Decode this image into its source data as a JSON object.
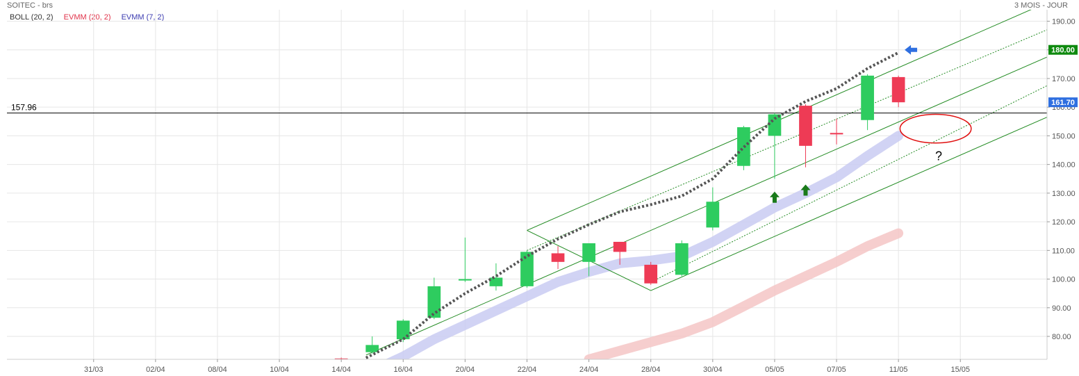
{
  "header": {
    "symbol": "SOITEC - brs",
    "period": "3 MOIS - JOUR"
  },
  "legend": [
    {
      "label": "BOLL (20, 2)",
      "color": "#333333"
    },
    {
      "label": "EVMM (20, 2)",
      "color": "#e0334a"
    },
    {
      "label": "EVMM (7, 2)",
      "color": "#3b3bb0"
    }
  ],
  "colors": {
    "up": "#2ecc5f",
    "down": "#ee3b55",
    "channel": "#228b22",
    "ema7_band": "#c9cbf2",
    "ema20_band": "#f4c6c6",
    "trend_dots": "#555555",
    "annotation_circle": "#e01010",
    "tag_resistance": "#0f8a0f",
    "tag_last": "#2f6fe0"
  },
  "chart_data": {
    "type": "candlestick",
    "title": "SOITEC - brs",
    "xlabel": "",
    "ylabel": "",
    "ylim": [
      72,
      194
    ],
    "y_ticks": [
      "80.00",
      "90.00",
      "100.00",
      "110.00",
      "120.00",
      "130.00",
      "140.00",
      "150.00",
      "160.00",
      "170.00",
      "180.00",
      "190.00"
    ],
    "x_ticks": [
      "31/03",
      "02/04",
      "08/04",
      "10/04",
      "14/04",
      "16/04",
      "20/04",
      "22/04",
      "24/04",
      "28/04",
      "30/04",
      "05/05",
      "07/05",
      "11/05",
      "15/05"
    ],
    "x_tick_positions": [
      5,
      7,
      9,
      11,
      13,
      15,
      17,
      19,
      21,
      23,
      25,
      27,
      29,
      31,
      33
    ],
    "x_range": [
      2.2,
      35.8
    ],
    "horizontal_line": {
      "value": 157.96,
      "label": "157.96"
    },
    "price_tags": [
      {
        "value": 180.0,
        "label": "180.00",
        "kind": "resistance"
      },
      {
        "value": 161.7,
        "label": "161.70",
        "kind": "last"
      }
    ],
    "candles": [
      {
        "x": 13.0,
        "open": 72.3,
        "close": 72.1,
        "high": 72.6,
        "low": 71.8
      },
      {
        "x": 14.0,
        "open": 74.5,
        "close": 77.0,
        "high": 80.0,
        "low": 74.0
      },
      {
        "x": 15.0,
        "open": 79.0,
        "close": 85.5,
        "high": 86.0,
        "low": 78.0
      },
      {
        "x": 16.0,
        "open": 86.5,
        "close": 97.5,
        "high": 100.5,
        "low": 86.0
      },
      {
        "x": 17.0,
        "open": 99.5,
        "close": 100.0,
        "high": 114.5,
        "low": 99.0
      },
      {
        "x": 18.0,
        "open": 97.5,
        "close": 100.5,
        "high": 105.5,
        "low": 96.0
      },
      {
        "x": 19.0,
        "open": 97.5,
        "close": 109.5,
        "high": 110.0,
        "low": 97.0
      },
      {
        "x": 20.0,
        "open": 109.0,
        "close": 106.0,
        "high": 111.5,
        "low": 103.5
      },
      {
        "x": 21.0,
        "open": 106.0,
        "close": 112.5,
        "high": 112.5,
        "low": 101.0
      },
      {
        "x": 22.0,
        "open": 113.0,
        "close": 109.5,
        "high": 113.0,
        "low": 105.0
      },
      {
        "x": 23.0,
        "open": 105.0,
        "close": 98.5,
        "high": 106.0,
        "low": 98.0
      },
      {
        "x": 24.0,
        "open": 101.5,
        "close": 112.5,
        "high": 113.5,
        "low": 101.0
      },
      {
        "x": 25.0,
        "open": 118.0,
        "close": 127.0,
        "high": 132.0,
        "low": 117.0
      },
      {
        "x": 26.0,
        "open": 139.5,
        "close": 153.0,
        "high": 153.5,
        "low": 138.0
      },
      {
        "x": 27.0,
        "open": 150.0,
        "close": 157.5,
        "high": 158.0,
        "low": 135.0
      },
      {
        "x": 28.0,
        "open": 160.5,
        "close": 146.5,
        "high": 161.0,
        "low": 139.0
      },
      {
        "x": 29.0,
        "open": 151.0,
        "close": 150.5,
        "high": 156.0,
        "low": 147.0
      },
      {
        "x": 30.0,
        "open": 155.5,
        "close": 171.0,
        "high": 171.5,
        "low": 152.0
      },
      {
        "x": 31.0,
        "open": 170.5,
        "close": 161.7,
        "high": 171.0,
        "low": 160.0
      }
    ],
    "series": [
      {
        "name": "EVMM (7, 2)",
        "style": "band",
        "points": [
          [
            14,
            68
          ],
          [
            15,
            73
          ],
          [
            16,
            79
          ],
          [
            17,
            84
          ],
          [
            18,
            89
          ],
          [
            19,
            94
          ],
          [
            20,
            99
          ],
          [
            21,
            102.5
          ],
          [
            22,
            105.5
          ],
          [
            23,
            106.5
          ],
          [
            24,
            108
          ],
          [
            25,
            113
          ],
          [
            26,
            119
          ],
          [
            27,
            125
          ],
          [
            28,
            130
          ],
          [
            29,
            135.5
          ],
          [
            30,
            143
          ],
          [
            31,
            150
          ]
        ]
      },
      {
        "name": "EVMM (20, 2)",
        "style": "band",
        "points": [
          [
            21,
            72
          ],
          [
            22,
            75
          ],
          [
            23,
            78
          ],
          [
            24,
            81
          ],
          [
            25,
            85
          ],
          [
            26,
            90.5
          ],
          [
            27,
            96
          ],
          [
            28,
            101
          ],
          [
            29,
            106
          ],
          [
            30,
            111.5
          ],
          [
            31,
            116
          ]
        ]
      },
      {
        "name": "trend",
        "style": "dotted",
        "points": [
          [
            13.8,
            72.5
          ],
          [
            15,
            79
          ],
          [
            16,
            88
          ],
          [
            17,
            95
          ],
          [
            18,
            101
          ],
          [
            19,
            108
          ],
          [
            20,
            114
          ],
          [
            21,
            119
          ],
          [
            22,
            123.5
          ],
          [
            23,
            126
          ],
          [
            24,
            129
          ],
          [
            25,
            135
          ],
          [
            26,
            146
          ],
          [
            27,
            156
          ],
          [
            28,
            162
          ],
          [
            29,
            166.5
          ],
          [
            30,
            173.5
          ],
          [
            31,
            179
          ]
        ]
      }
    ],
    "channel": {
      "lines": [
        {
          "p1": [
            19,
            117
          ],
          "p2": [
            35.8,
            196.5
          ],
          "style": "solid"
        },
        {
          "p1": [
            23,
            96
          ],
          "p2": [
            35.8,
            156.5
          ],
          "style": "solid"
        },
        {
          "p1": [
            13.8,
            73.5
          ],
          "p2": [
            35.8,
            177.5
          ],
          "style": "solid"
        },
        {
          "p1": [
            19,
            110
          ],
          "p2": [
            35.8,
            187
          ],
          "style": "dotted"
        },
        {
          "p1": [
            23.2,
            100
          ],
          "p2": [
            35.8,
            167.5
          ],
          "style": "dotted"
        }
      ],
      "cross": [
        {
          "p1": [
            19,
            117
          ],
          "p2": [
            23,
            96
          ]
        }
      ]
    },
    "annotations": [
      {
        "type": "ellipse",
        "cx": 32.2,
        "cy": 152.5,
        "rx": 1.15,
        "ry": 5.0
      },
      {
        "type": "text",
        "x": 32.3,
        "y": 141.5,
        "text": "?"
      },
      {
        "type": "arrow-up",
        "x": 27.0,
        "y": 130.5,
        "color": "#1a7a1a"
      },
      {
        "type": "arrow-up",
        "x": 28.0,
        "y": 133.0,
        "color": "#1a7a1a"
      },
      {
        "type": "arrow-left",
        "x": 31.2,
        "y": 180.0,
        "color": "#2f6fe0"
      }
    ]
  }
}
